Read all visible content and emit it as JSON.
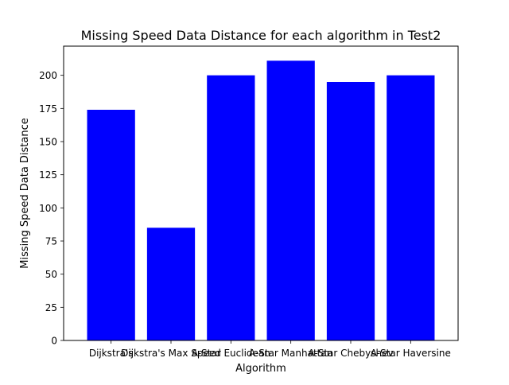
{
  "chart_data": {
    "type": "bar",
    "title": "Missing Speed Data Distance for each algorithm in Test2",
    "xlabel": "Algorithm",
    "ylabel": "Missing Speed Data Distance",
    "categories": [
      "Dijkstra's",
      "Dijkstra's Max Speed",
      "A-Star Euclidean",
      "A-Star Manhattan",
      "A-Star Chebyshev",
      "A-Star Haversine"
    ],
    "values": [
      174,
      85,
      200,
      211,
      195,
      200
    ],
    "ylim": [
      0,
      222
    ],
    "yticks": [
      0,
      25,
      50,
      75,
      100,
      125,
      150,
      175,
      200
    ],
    "bar_color": "#0000ff",
    "grid": false,
    "legend": "none"
  }
}
